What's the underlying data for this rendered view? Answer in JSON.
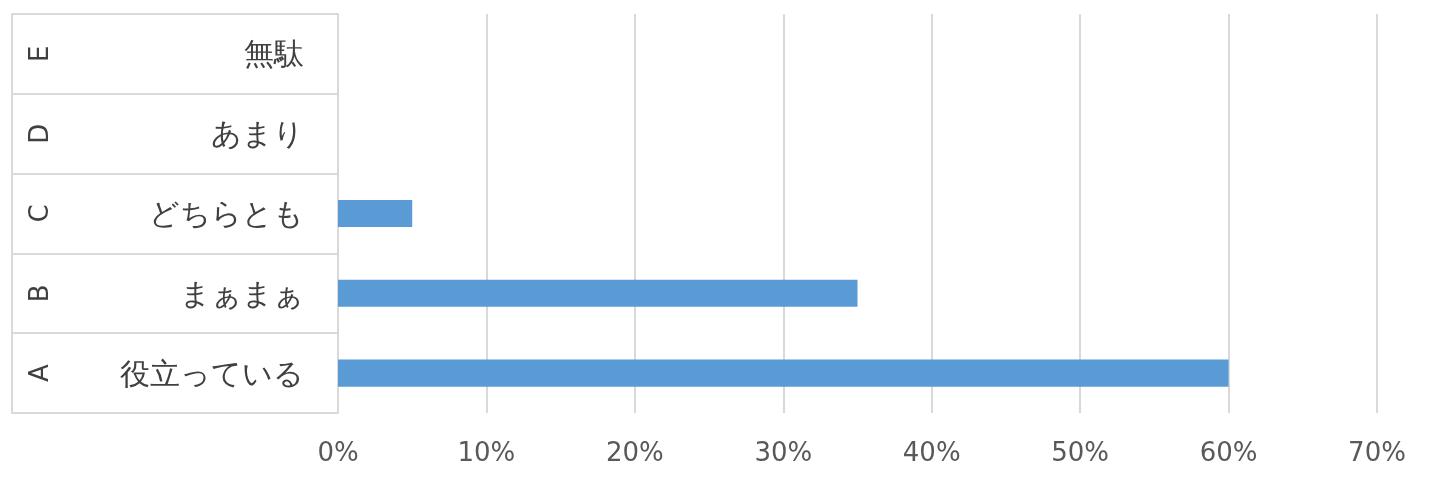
{
  "chart_data": {
    "type": "bar",
    "orientation": "horizontal",
    "categories": [
      "無駄",
      "あまり",
      "どちらとも",
      "まぁまぁ",
      "役立っている"
    ],
    "y2_categories": [
      "E",
      "D",
      "C",
      "B",
      "A"
    ],
    "values": [
      0,
      0,
      5,
      35,
      60
    ],
    "color": "#5b9bd5",
    "xlim": [
      0,
      70
    ],
    "xticks": [
      {
        "value": 0,
        "label": "0%"
      },
      {
        "value": 10,
        "label": "10%"
      },
      {
        "value": 20,
        "label": "20%"
      },
      {
        "value": 30,
        "label": "30%"
      },
      {
        "value": 40,
        "label": "40%"
      },
      {
        "value": 50,
        "label": "50%"
      },
      {
        "value": 60,
        "label": "60%"
      },
      {
        "value": 70,
        "label": "70%"
      }
    ],
    "grid": "x"
  }
}
